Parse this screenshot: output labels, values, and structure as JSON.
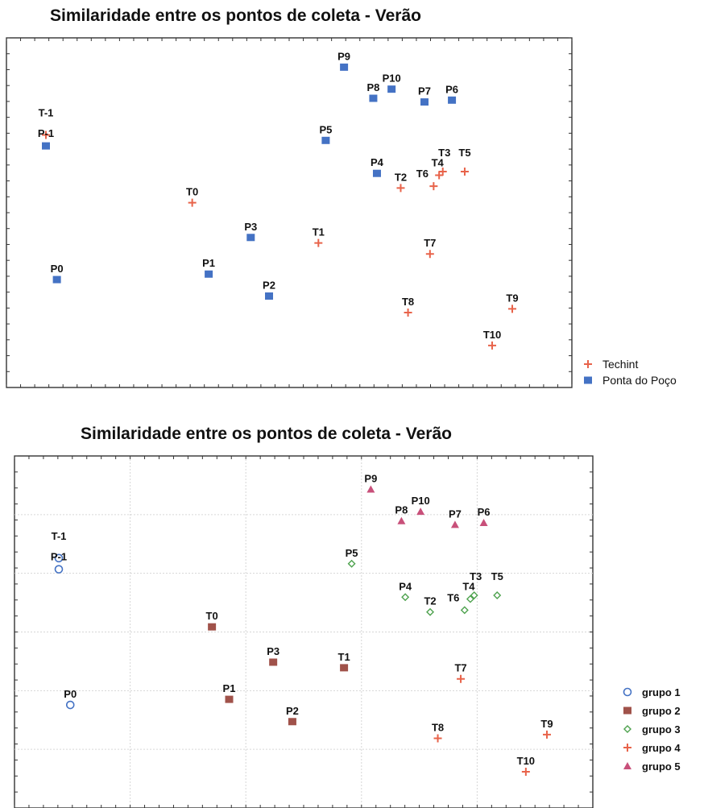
{
  "chart_data": [
    {
      "type": "scatter",
      "title": "Similaridade entre os pontos de coleta - Verão",
      "grid": false,
      "legend_placement": "bottom-right",
      "series": [
        {
          "name": "Techint",
          "marker": "plus",
          "color": "#e8634a",
          "points": [
            {
              "label": "T-1",
              "x": 0.0,
              "y": 7.05
            },
            {
              "label": "T0",
              "x": 4.0,
              "y": 5.2
            },
            {
              "label": "T1",
              "x": 7.45,
              "y": 4.1
            },
            {
              "label": "T2",
              "x": 9.7,
              "y": 5.6
            },
            {
              "label": "T3",
              "x": 10.85,
              "y": 6.05
            },
            {
              "label": "T4",
              "x": 10.75,
              "y": 5.95
            },
            {
              "label": "T5",
              "x": 11.45,
              "y": 6.05
            },
            {
              "label": "T6",
              "x": 10.6,
              "y": 5.65
            },
            {
              "label": "T7",
              "x": 10.5,
              "y": 3.8
            },
            {
              "label": "T8",
              "x": 9.9,
              "y": 2.2
            },
            {
              "label": "T9",
              "x": 12.75,
              "y": 2.3
            },
            {
              "label": "T10",
              "x": 12.2,
              "y": 1.3
            }
          ]
        },
        {
          "name": "Ponta do Poço",
          "marker": "square",
          "color": "#4472c4",
          "points": [
            {
              "label": "P-1",
              "x": 0.0,
              "y": 6.75
            },
            {
              "label": "P0",
              "x": 0.3,
              "y": 3.1
            },
            {
              "label": "P1",
              "x": 4.45,
              "y": 3.25
            },
            {
              "label": "P2",
              "x": 6.1,
              "y": 2.65
            },
            {
              "label": "P3",
              "x": 5.6,
              "y": 4.25
            },
            {
              "label": "P4",
              "x": 9.05,
              "y": 6.0
            },
            {
              "label": "P5",
              "x": 7.65,
              "y": 6.9
            },
            {
              "label": "P6",
              "x": 11.1,
              "y": 8.0
            },
            {
              "label": "P7",
              "x": 10.35,
              "y": 7.95
            },
            {
              "label": "P8",
              "x": 8.95,
              "y": 8.05
            },
            {
              "label": "P9",
              "x": 8.15,
              "y": 8.9
            },
            {
              "label": "P10",
              "x": 9.45,
              "y": 8.3
            }
          ]
        }
      ]
    },
    {
      "type": "scatter",
      "title": "Similaridade entre os pontos de coleta - Verão",
      "grid": true,
      "legend_placement": "bottom-right",
      "series": [
        {
          "name": "grupo 1",
          "marker": "circle",
          "color": "#4472c4",
          "points": [
            {
              "label": "T-1",
              "x": 0.0,
              "y": 7.05
            },
            {
              "label": "P-1",
              "x": 0.0,
              "y": 6.75
            },
            {
              "label": "P0",
              "x": 0.3,
              "y": 3.1
            }
          ]
        },
        {
          "name": "grupo 2",
          "marker": "square",
          "color": "#a0524a",
          "points": [
            {
              "label": "T0",
              "x": 4.0,
              "y": 5.2
            },
            {
              "label": "P1",
              "x": 4.45,
              "y": 3.25
            },
            {
              "label": "P2",
              "x": 6.1,
              "y": 2.65
            },
            {
              "label": "P3",
              "x": 5.6,
              "y": 4.25
            },
            {
              "label": "T1",
              "x": 7.45,
              "y": 4.1
            }
          ]
        },
        {
          "name": "grupo 3",
          "marker": "diamond",
          "color": "#4ea24e",
          "points": [
            {
              "label": "P5",
              "x": 7.65,
              "y": 6.9
            },
            {
              "label": "P4",
              "x": 9.05,
              "y": 6.0
            },
            {
              "label": "T2",
              "x": 9.7,
              "y": 5.6
            },
            {
              "label": "T6",
              "x": 10.6,
              "y": 5.65
            },
            {
              "label": "T4",
              "x": 10.75,
              "y": 5.95
            },
            {
              "label": "T3",
              "x": 10.85,
              "y": 6.05
            },
            {
              "label": "T5",
              "x": 11.45,
              "y": 6.05
            }
          ]
        },
        {
          "name": "grupo 4",
          "marker": "plus",
          "color": "#e8634a",
          "points": [
            {
              "label": "T7",
              "x": 10.5,
              "y": 3.8
            },
            {
              "label": "T8",
              "x": 9.9,
              "y": 2.2
            },
            {
              "label": "T9",
              "x": 12.75,
              "y": 2.3
            },
            {
              "label": "T10",
              "x": 12.2,
              "y": 1.3
            }
          ]
        },
        {
          "name": "grupo 5",
          "marker": "triangle",
          "color": "#c8507a",
          "points": [
            {
              "label": "P9",
              "x": 8.15,
              "y": 8.9
            },
            {
              "label": "P8",
              "x": 8.95,
              "y": 8.05
            },
            {
              "label": "P10",
              "x": 9.45,
              "y": 8.3
            },
            {
              "label": "P7",
              "x": 10.35,
              "y": 7.95
            },
            {
              "label": "P6",
              "x": 11.1,
              "y": 8.0
            }
          ]
        }
      ]
    }
  ]
}
